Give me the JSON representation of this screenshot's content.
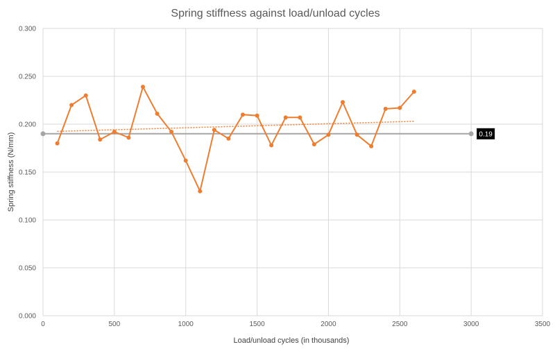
{
  "chart_data": {
    "type": "scatter",
    "title": "Spring stiffness against load/unload cycles",
    "xlabel": "Load/unload cycles (in thousands)",
    "ylabel": "Spring stiffness (N/mm)",
    "xlim": [
      0,
      3500
    ],
    "ylim": [
      0,
      0.3
    ],
    "xticks": [
      0,
      500,
      1000,
      1500,
      2000,
      2500,
      3000,
      3500
    ],
    "yticks": [
      "0.000",
      "0.050",
      "0.100",
      "0.150",
      "0.200",
      "0.250",
      "0.300"
    ],
    "grid": true,
    "legend": "none",
    "colors": {
      "series": "#ed7d31",
      "reference": "#a5a5a5",
      "label_bg": "#000000"
    },
    "series": [
      {
        "x": [
          100,
          200,
          300,
          400,
          500,
          600,
          700,
          800,
          900,
          1000,
          1100,
          1200,
          1300,
          1400,
          1500,
          1600,
          1700,
          1800,
          1900,
          2000,
          2100,
          2200,
          2300,
          2400,
          2500,
          2600
        ],
        "y": [
          0.18,
          0.22,
          0.23,
          0.184,
          0.192,
          0.186,
          0.239,
          0.211,
          0.192,
          0.162,
          0.13,
          0.194,
          0.185,
          0.21,
          0.209,
          0.178,
          0.207,
          0.207,
          0.179,
          0.189,
          0.223,
          0.189,
          0.177,
          0.216,
          0.217,
          0.234
        ]
      }
    ],
    "trendline": {
      "type": "linear",
      "x": [
        100,
        2600
      ],
      "y": [
        0.1925,
        0.203
      ]
    },
    "reference_line": {
      "y": 0.19,
      "x": [
        0,
        3000
      ],
      "label": "0.19"
    }
  }
}
